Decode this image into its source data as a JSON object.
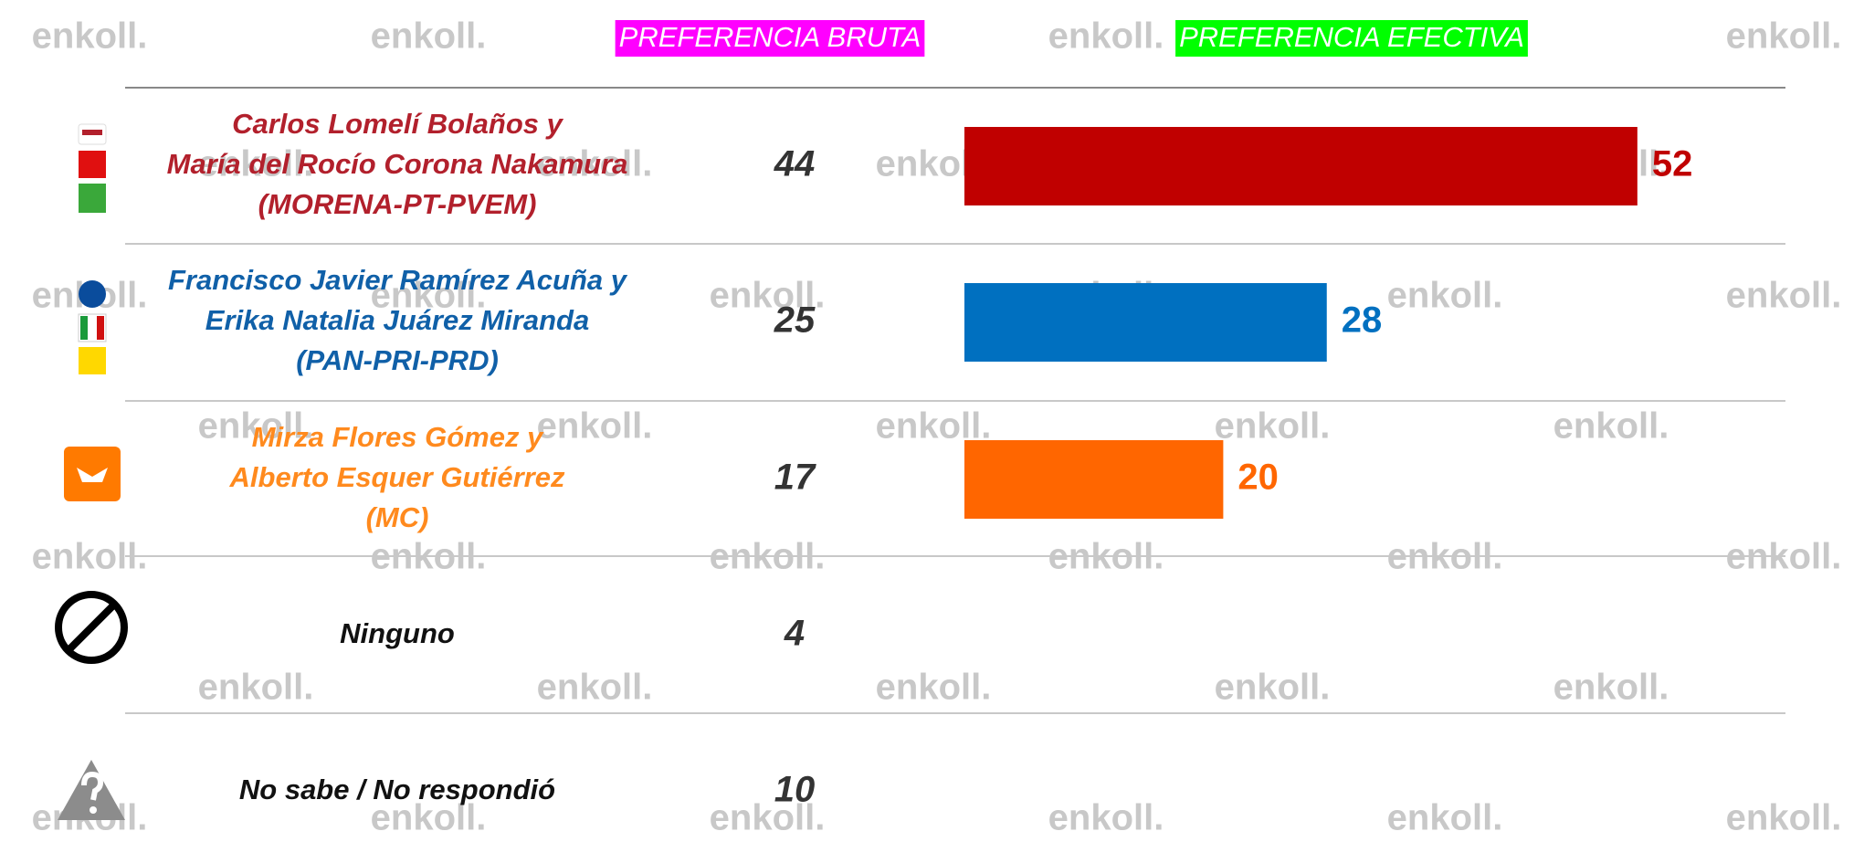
{
  "chart_data": {
    "type": "bar",
    "watermark": "enkoll.",
    "headers": {
      "bruta": "PREFERENCIA BRUTA",
      "efectiva": "PREFERENCIA EFECTIVA"
    },
    "header_colors": {
      "bruta": "#ff00ff",
      "efectiva": "#00ff00"
    },
    "categories": [
      [
        "Carlos Lomelí Bolaños y",
        "María del Rocío Corona Nakamura",
        "(MORENA-PT-PVEM)"
      ],
      [
        "Francisco Javier Ramírez Acuña y",
        "Erika Natalia Juárez Miranda",
        "(PAN-PRI-PRD)"
      ],
      [
        "Mirza Flores Gómez y",
        "Alberto Esquer Gutiérrez",
        "(MC)"
      ],
      [
        "Ninguno"
      ],
      [
        "No sabe / No respondió"
      ]
    ],
    "name_colors": [
      "#b2202c",
      "#1060a8",
      "#ff8a1e",
      "#111111",
      "#111111"
    ],
    "bruta": [
      44,
      25,
      17,
      4,
      10
    ],
    "efectiva": [
      52,
      28,
      20,
      null,
      null
    ],
    "colors": [
      "#c00000",
      "#0070c0",
      "#ff6600",
      null,
      null
    ]
  }
}
